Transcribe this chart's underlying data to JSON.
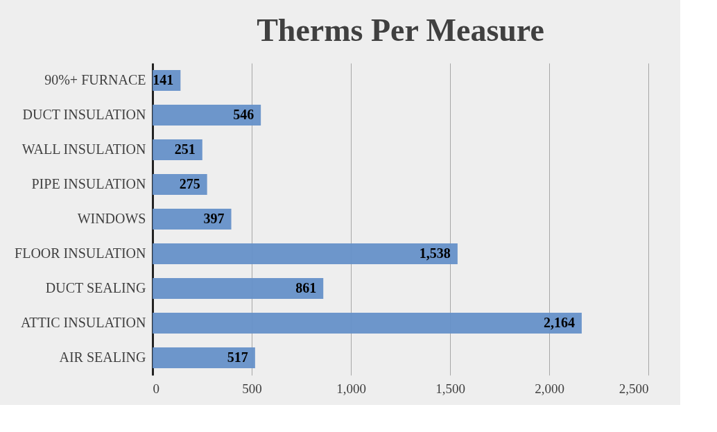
{
  "chart_data": {
    "type": "bar",
    "orientation": "horizontal",
    "title": "Therms Per Measure",
    "categories": [
      "90%+ FURNACE",
      "DUCT INSULATION",
      "WALL INSULATION",
      "PIPE INSULATION",
      "WINDOWS",
      "FLOOR INSULATION",
      "DUCT SEALING",
      "ATTIC INSULATION",
      "AIR SEALING"
    ],
    "values": [
      141,
      546,
      251,
      275,
      397,
      1538,
      861,
      2164,
      517
    ],
    "value_labels": [
      "141",
      "546",
      "251",
      "275",
      "397",
      "1,538",
      "861",
      "2,164",
      "517"
    ],
    "color": "#6590c8",
    "xlim": [
      0,
      2500
    ],
    "xticks": [
      0,
      500,
      {
        "value": 1000,
        "label": "1,000"
      },
      {
        "value": 1500,
        "label": "1,500"
      },
      {
        "value": 2000,
        "label": "2,000"
      },
      {
        "value": 2500,
        "label": "2,500"
      }
    ],
    "grid": "x"
  }
}
